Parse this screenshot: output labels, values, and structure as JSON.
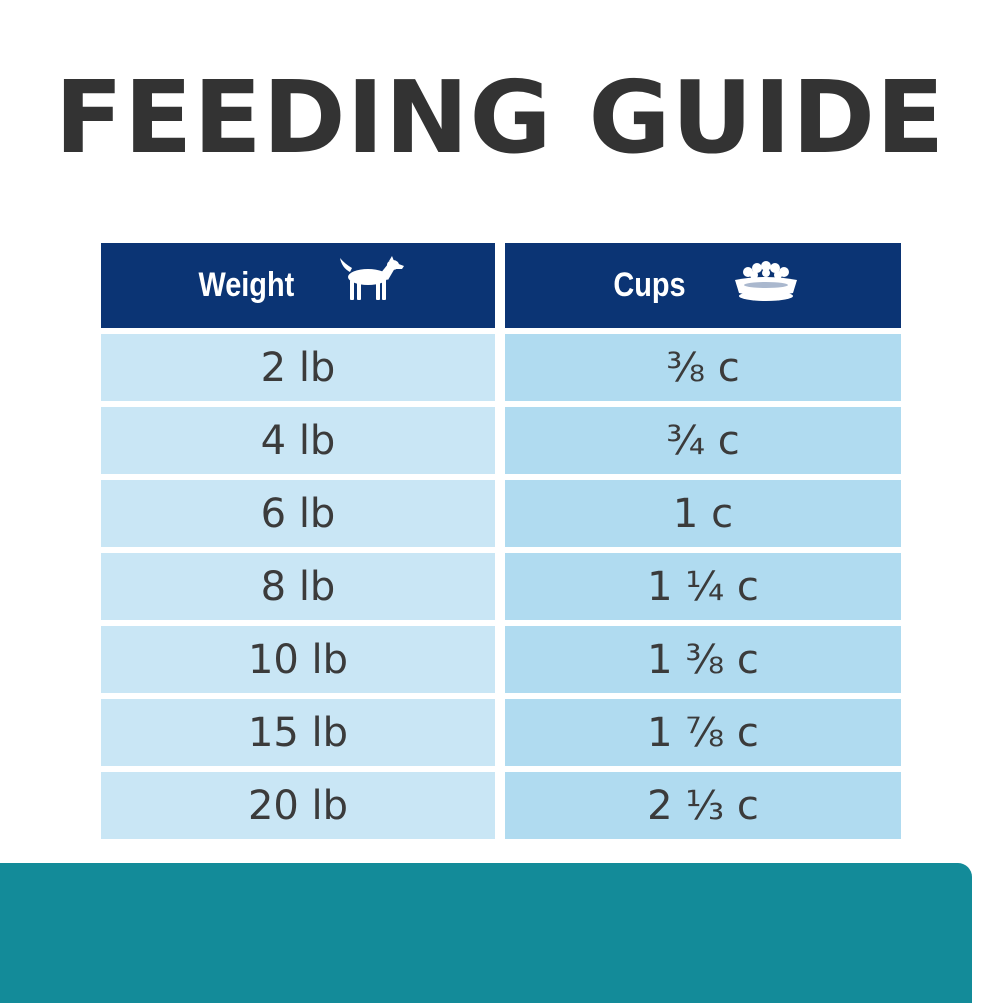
{
  "title": "FEEDING GUIDE",
  "colors": {
    "title": "#333333",
    "header_bg": "#0b3474",
    "weight_cell_bg": "#c9e6f5",
    "cups_cell_bg": "#b0dbf0",
    "band": "#138b99"
  },
  "table": {
    "headers": [
      {
        "label": "Weight",
        "icon": "dog-icon"
      },
      {
        "label": "Cups",
        "icon": "food-bowl-icon"
      }
    ],
    "rows": [
      {
        "weight": "2 lb",
        "cups": "⅜ c"
      },
      {
        "weight": "4 lb",
        "cups": "¾ c"
      },
      {
        "weight": "6 lb",
        "cups": "1 c"
      },
      {
        "weight": "8 lb",
        "cups": "1 ¼ c"
      },
      {
        "weight": "10 lb",
        "cups": "1 ⅜ c"
      },
      {
        "weight": "15 lb",
        "cups": "1 ⅞ c"
      },
      {
        "weight": "20 lb",
        "cups": "2 ⅓ c"
      }
    ]
  }
}
